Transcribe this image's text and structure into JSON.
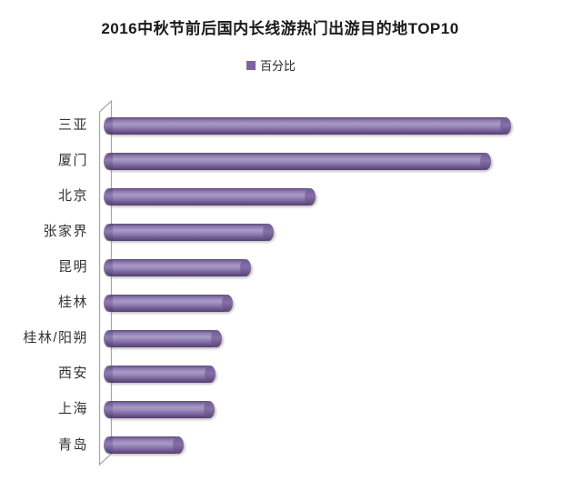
{
  "chart_data": {
    "type": "bar",
    "orientation": "horizontal",
    "style": "3d-cylinder",
    "title": "2016中秋节前后国内长线游热门出游目的地TOP10",
    "legend": [
      "百分比"
    ],
    "legend_position": "top-center",
    "categories": [
      "三亚",
      "厦门",
      "北京",
      "张家界",
      "昆明",
      "桂林",
      "桂林/阳朔",
      "西安",
      "上海",
      "青岛"
    ],
    "values": [
      100,
      95.1,
      52,
      41.7,
      36.2,
      31.7,
      29,
      27.5,
      27.2,
      19.6
    ],
    "value_axis": {
      "visible": false,
      "range_estimated": [
        0,
        100
      ],
      "note": "no numeric axis, gridlines or data labels are visible; values estimated relative to longest bar (三亚 = 100)"
    },
    "grid": "off",
    "bar_color": "#8064A2",
    "axis_line_color": "#A6A6A6",
    "background": "#FFFFFF"
  }
}
